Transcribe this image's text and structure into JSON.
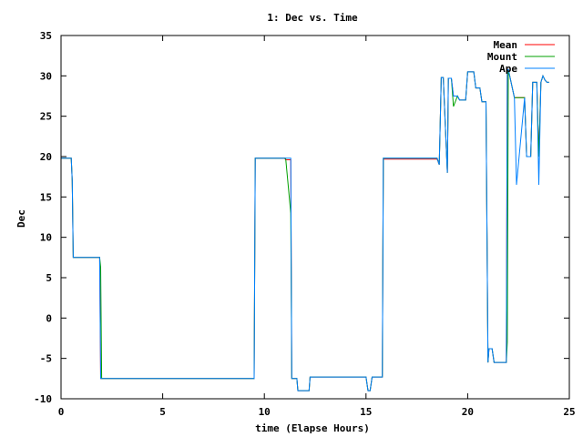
{
  "chart_data": {
    "type": "line",
    "title": "1: Dec vs. Time",
    "xlabel": "time (Elapse Hours)",
    "ylabel": "Dec",
    "xlim": [
      0,
      25
    ],
    "ylim": [
      -10,
      35
    ],
    "xticks": [
      0,
      5,
      10,
      15,
      20,
      25
    ],
    "yticks": [
      -10,
      -5,
      0,
      5,
      10,
      15,
      20,
      25,
      30,
      35
    ],
    "legend_position": "top-right",
    "grid": false,
    "series": [
      {
        "name": "Mean",
        "color": "#ff0000",
        "x": [
          0,
          0.5,
          0.55,
          0.6,
          1.9,
          1.95,
          2.0,
          9.5,
          9.55,
          11.0,
          11.05,
          11.3,
          11.35,
          11.6,
          11.65,
          12.2,
          12.25,
          14.0,
          14.05,
          15.0,
          15.1,
          15.2,
          15.3,
          15.8,
          15.85,
          18.5,
          18.6,
          18.7,
          18.8,
          19.0,
          19.05,
          19.2,
          19.3,
          19.5,
          19.6,
          19.9,
          20.0,
          20.3,
          20.4,
          20.6,
          20.7,
          20.9,
          21.0,
          21.05,
          21.2,
          21.3,
          21.9,
          21.95,
          22.0,
          22.3,
          22.4,
          22.8,
          22.9,
          23.1,
          23.2,
          23.4,
          23.5,
          23.6,
          23.7,
          23.8,
          23.9,
          24.0
        ],
        "y": [
          19.8,
          19.8,
          17,
          7.5,
          7.5,
          -7.5,
          -7.5,
          -7.5,
          19.8,
          19.8,
          19.6,
          19.6,
          -7.5,
          -7.5,
          -9,
          -9,
          -7.3,
          -7.3,
          -7.3,
          -7.3,
          -9,
          -9,
          -7.3,
          -7.3,
          19.7,
          19.7,
          19,
          29.8,
          29.8,
          18,
          29.7,
          29.7,
          27.5,
          27.5,
          27,
          27,
          30.5,
          30.5,
          28.5,
          28.5,
          26.8,
          26.8,
          -5.5,
          -3.8,
          -3.8,
          -5.5,
          -5.5,
          30.8,
          30.8,
          27.3,
          27.3,
          27.3,
          20,
          20,
          29.2,
          29.2,
          20,
          29.2,
          30,
          29.5,
          29.2,
          29.2
        ]
      },
      {
        "name": "Mount",
        "color": "#00a000",
        "x": [
          0,
          0.5,
          0.55,
          0.6,
          1.9,
          1.95,
          2.0,
          9.5,
          9.55,
          11.0,
          11.05,
          11.3,
          11.35,
          11.6,
          11.65,
          12.2,
          12.25,
          14.0,
          14.05,
          15.0,
          15.1,
          15.2,
          15.3,
          15.8,
          15.85,
          18.5,
          18.6,
          18.7,
          18.8,
          19.0,
          19.05,
          19.2,
          19.3,
          19.5,
          19.6,
          19.9,
          20.0,
          20.3,
          20.4,
          20.6,
          20.7,
          20.9,
          21.0,
          21.05,
          21.2,
          21.3,
          21.9,
          21.95,
          22.0,
          22.3,
          22.4,
          22.8,
          22.9,
          23.1,
          23.2,
          23.4,
          23.5,
          23.6,
          23.7,
          23.8,
          23.9,
          24.0
        ],
        "y": [
          19.8,
          19.8,
          17,
          7.5,
          7.5,
          6.3,
          -7.5,
          -7.5,
          19.8,
          19.8,
          19.8,
          13,
          -7.5,
          -7.5,
          -9,
          -9,
          -7.3,
          -7.3,
          -7.3,
          -7.3,
          -9,
          -9,
          -7.3,
          -7.3,
          19.8,
          19.8,
          19,
          29.8,
          29.8,
          18,
          29.7,
          29.7,
          26.2,
          27.5,
          27,
          27,
          30.5,
          30.5,
          28.5,
          28.5,
          26.8,
          26.8,
          -5.5,
          -3.8,
          -3.8,
          -5.5,
          -5.5,
          -3,
          30.8,
          27.3,
          27.3,
          27.3,
          20,
          20,
          29.2,
          29.2,
          20,
          29.2,
          30,
          29.5,
          29.2,
          29.2
        ]
      },
      {
        "name": "Ape",
        "color": "#0080ff",
        "x": [
          0,
          0.5,
          0.55,
          0.6,
          1.9,
          1.95,
          2.0,
          9.5,
          9.55,
          11.0,
          11.05,
          11.3,
          11.35,
          11.6,
          11.65,
          12.2,
          12.25,
          14.0,
          14.05,
          15.0,
          15.1,
          15.2,
          15.3,
          15.8,
          15.85,
          18.5,
          18.6,
          18.7,
          18.8,
          19.0,
          19.05,
          19.2,
          19.3,
          19.5,
          19.6,
          19.9,
          20.0,
          20.3,
          20.4,
          20.6,
          20.7,
          20.9,
          21.0,
          21.05,
          21.2,
          21.3,
          21.9,
          21.95,
          22.0,
          22.3,
          22.4,
          22.8,
          22.9,
          23.1,
          23.2,
          23.4,
          23.5,
          23.6,
          23.7,
          23.8,
          23.9,
          24.0
        ],
        "y": [
          19.8,
          19.8,
          17,
          7.5,
          7.5,
          -7.5,
          -7.5,
          -7.5,
          19.8,
          19.8,
          19.8,
          19.8,
          -7.5,
          -7.5,
          -9,
          -9,
          -7.3,
          -7.3,
          -7.3,
          -7.3,
          -9,
          -9,
          -7.3,
          -7.3,
          19.8,
          19.8,
          19,
          29.8,
          29.8,
          18,
          29.7,
          29.7,
          27.5,
          27.5,
          27,
          27,
          30.5,
          30.5,
          28.5,
          28.5,
          26.8,
          26.8,
          -5.5,
          -3.8,
          -3.8,
          -5.5,
          -5.5,
          30.8,
          30.8,
          27.3,
          16.5,
          27.3,
          20,
          20,
          29.2,
          29.2,
          16.5,
          29.2,
          30,
          29.5,
          29.2,
          29.2
        ]
      }
    ]
  }
}
